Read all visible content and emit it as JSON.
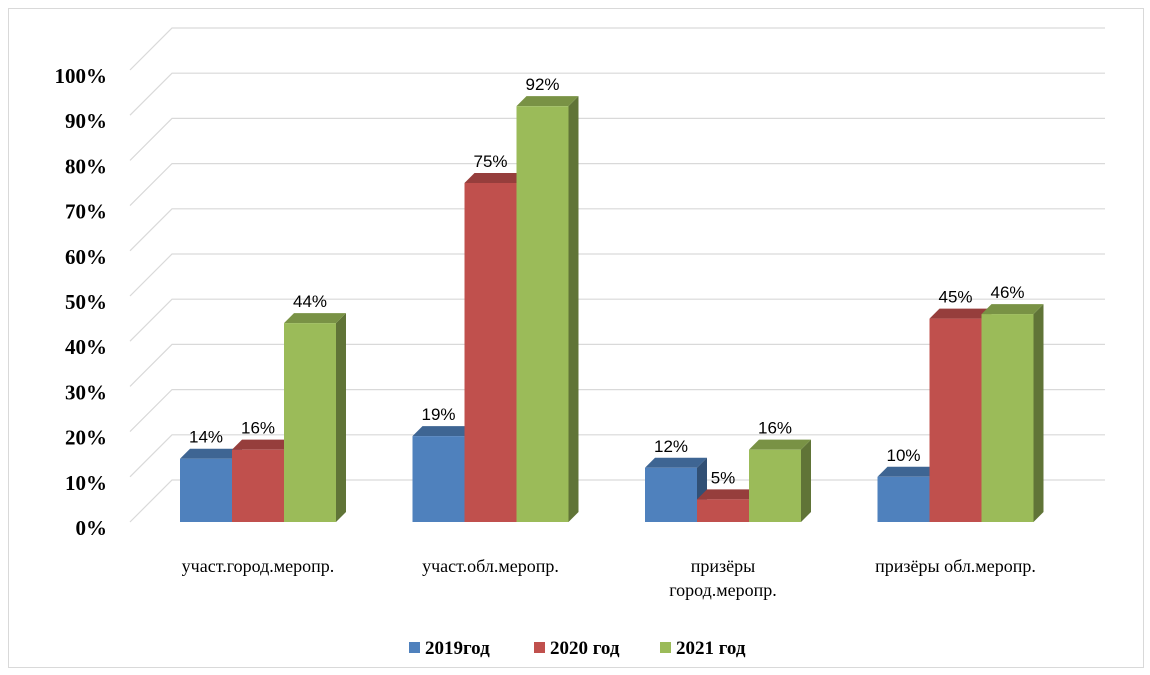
{
  "chart_data": {
    "type": "bar",
    "title": "",
    "xlabel": "",
    "ylabel": "",
    "ylim": [
      0,
      100
    ],
    "y_ticks": [
      "0%",
      "10%",
      "20%",
      "30%",
      "40%",
      "50%",
      "60%",
      "70%",
      "80%",
      "90%",
      "100%"
    ],
    "grid": true,
    "legend_position": "bottom",
    "three_d": true,
    "categories": [
      [
        "участ.город.меропр."
      ],
      [
        "участ.обл.меропр."
      ],
      [
        "призёры",
        "город.меропр."
      ],
      [
        "призёры обл.меропр."
      ]
    ],
    "series": [
      {
        "name": "2019год",
        "color": "#4F81BD",
        "values": [
          14,
          19,
          12,
          10
        ],
        "labels": [
          "14%",
          "19%",
          "12%",
          "10%"
        ]
      },
      {
        "name": "2020 год",
        "color": "#C0504D",
        "values": [
          16,
          75,
          5,
          45
        ],
        "labels": [
          "16%",
          "75%",
          "5%",
          "45%"
        ]
      },
      {
        "name": "2021 год",
        "color": "#9BBB59",
        "values": [
          44,
          92,
          16,
          46
        ],
        "labels": [
          "44%",
          "92%",
          "16%",
          "46%"
        ]
      }
    ]
  }
}
